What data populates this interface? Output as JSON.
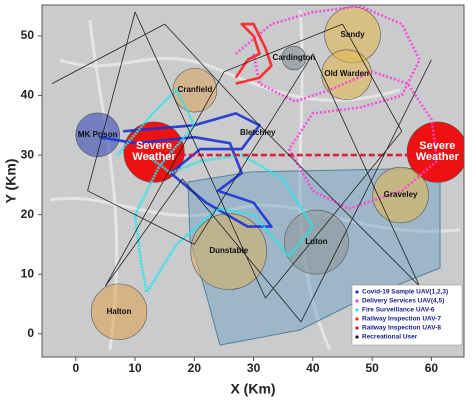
{
  "chart_data": {
    "type": "map",
    "xlabel": "X (Km)",
    "ylabel": "Y (Km)",
    "xlim": [
      -5.7,
      65.5
    ],
    "ylim": [
      -3.9,
      55.2
    ],
    "xticks": [
      0,
      10,
      20,
      30,
      40,
      50,
      60
    ],
    "yticks": [
      0,
      10,
      20,
      30,
      40,
      50
    ],
    "zones": [
      {
        "name": "MK Prison",
        "x": 3.7,
        "y": 33.4,
        "r": 3.7,
        "color": "#2a3fb0"
      },
      {
        "name": "Cranfield",
        "x": 20.1,
        "y": 40.9,
        "r": 3.7,
        "color": "#d9a25a"
      },
      {
        "name": "Cardington",
        "x": 36.8,
        "y": 46.3,
        "r": 2.0,
        "color": "#7f8a8e"
      },
      {
        "name": "Sandy",
        "x": 46.7,
        "y": 50.2,
        "r": 4.7,
        "color": "#e3b84a"
      },
      {
        "name": "Old Warden",
        "x": 45.7,
        "y": 43.5,
        "r": 4.2,
        "color": "#e3b84a"
      },
      {
        "name": "Severe Weather",
        "x": 13.2,
        "y": 30.5,
        "r": 5.1,
        "color": "#ee1111"
      },
      {
        "name": "Severe Weather",
        "x": 61.0,
        "y": 30.5,
        "r": 5.1,
        "color": "#ee1111"
      },
      {
        "name": "Graveley",
        "x": 54.8,
        "y": 23.3,
        "r": 4.7,
        "color": "#e3b84a"
      },
      {
        "name": "Dunstable",
        "x": 25.8,
        "y": 13.8,
        "r": 6.4,
        "color": "#d9b060"
      },
      {
        "name": "Luton",
        "x": 40.6,
        "y": 15.4,
        "r": 5.4,
        "color": "#8a9696"
      },
      {
        "name": "Halton",
        "x": 7.3,
        "y": 3.7,
        "r": 4.7,
        "color": "#e0a04a"
      }
    ],
    "annotations": [
      {
        "text": "Bletchley",
        "x": 30.7,
        "y": 33.7
      }
    ],
    "series": [
      {
        "name": "Covid-19 Sample UAV(1,2,3)",
        "color": "#1a33d6",
        "dash": "none",
        "x": [
          4,
          10,
          20,
          26,
          28,
          24,
          30,
          33,
          29,
          22,
          16,
          21,
          28,
          31,
          27,
          20,
          8
        ],
        "y": [
          33,
          32,
          33,
          32,
          27,
          24,
          22,
          18,
          18,
          22,
          27,
          31,
          31,
          35,
          37,
          35,
          34
        ]
      },
      {
        "name": "Delivery Services UAV(4,5)",
        "color": "#ff40d8",
        "dash": "2 2",
        "x": [
          27,
          33,
          40,
          48,
          55,
          58,
          55,
          48,
          40,
          36,
          40,
          46,
          55,
          61,
          60,
          56,
          50,
          43,
          37,
          31,
          30
        ],
        "y": [
          47,
          52,
          54,
          55,
          52,
          46,
          40,
          38,
          37,
          31,
          24,
          21,
          24,
          29,
          36,
          42,
          44,
          41,
          39,
          42,
          47
        ]
      },
      {
        "name": "Fire Surveillance UAV-6",
        "color": "#22e6f0",
        "dash": "2 1",
        "x": [
          7,
          13,
          17,
          20,
          14,
          10,
          11,
          12,
          17,
          24,
          30,
          36,
          40,
          35,
          28,
          21,
          16,
          12
        ],
        "y": [
          30,
          37,
          41,
          35,
          28,
          20,
          12,
          7,
          15,
          21,
          20,
          13,
          18,
          26,
          30,
          29,
          27,
          30
        ]
      },
      {
        "name": "Railway Inspection UAV-7",
        "color": "#ff2020",
        "dash": "none",
        "x": [
          27,
          29,
          31,
          30,
          28,
          30,
          32,
          33,
          31,
          27
        ],
        "y": [
          43,
          46,
          47,
          50,
          52,
          52,
          48,
          45,
          43,
          42
        ]
      },
      {
        "name": "Railway Inspection UAV-8",
        "color": "#d8102e",
        "dash": "6 3",
        "x": [
          13,
          25,
          37,
          49,
          61
        ],
        "y": [
          30,
          30,
          30,
          30,
          30
        ]
      },
      {
        "name": "Recreational User",
        "color": "#111111",
        "dash": "none",
        "x": [
          -4,
          15,
          30,
          46,
          58,
          40,
          20,
          2,
          10,
          32,
          55,
          45,
          25,
          5,
          18,
          38,
          60
        ],
        "y": [
          42,
          52,
          36,
          20,
          8,
          47,
          15,
          24,
          54,
          6,
          34,
          52,
          44,
          8,
          26,
          2,
          46
        ]
      }
    ],
    "legend": "lower right"
  }
}
